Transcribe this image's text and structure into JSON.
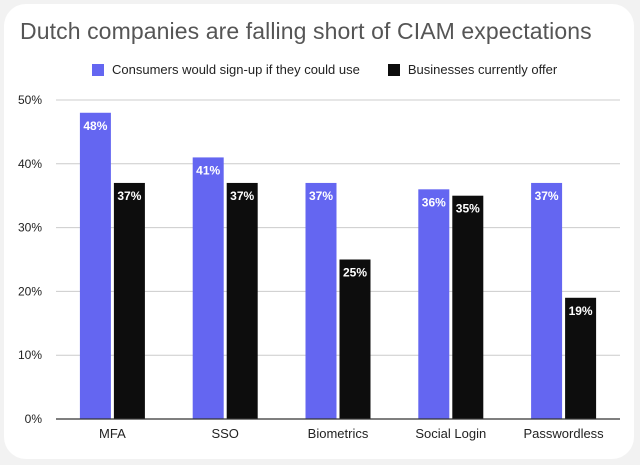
{
  "chart_data": {
    "type": "bar",
    "title": "Dutch companies are falling short of CIAM expectations",
    "xlabel": "",
    "ylabel": "",
    "categories": [
      "MFA",
      "SSO",
      "Biometrics",
      "Social Login",
      "Passwordless"
    ],
    "series": [
      {
        "name": "Consumers would sign-up if they could use",
        "values": [
          48,
          41,
          37,
          36,
          37
        ],
        "labels": [
          "48%",
          "41%",
          "37%",
          "36%",
          "37%"
        ],
        "color": "#6466f1"
      },
      {
        "name": "Businesses currently offer",
        "values": [
          37,
          37,
          25,
          35,
          19
        ],
        "labels": [
          "37%",
          "37%",
          "25%",
          "35%",
          "19%"
        ],
        "color": "#0d0d0d"
      }
    ],
    "ylim": [
      0,
      50
    ],
    "yticks": [
      0,
      10,
      20,
      30,
      40,
      50
    ],
    "ytick_labels": [
      "0%",
      "10%",
      "20%",
      "30%",
      "40%",
      "50%"
    ],
    "grid": true,
    "legend_position": "top"
  },
  "colors": {
    "grid": "#cccccc",
    "axis": "#333333",
    "title": "#555555"
  }
}
